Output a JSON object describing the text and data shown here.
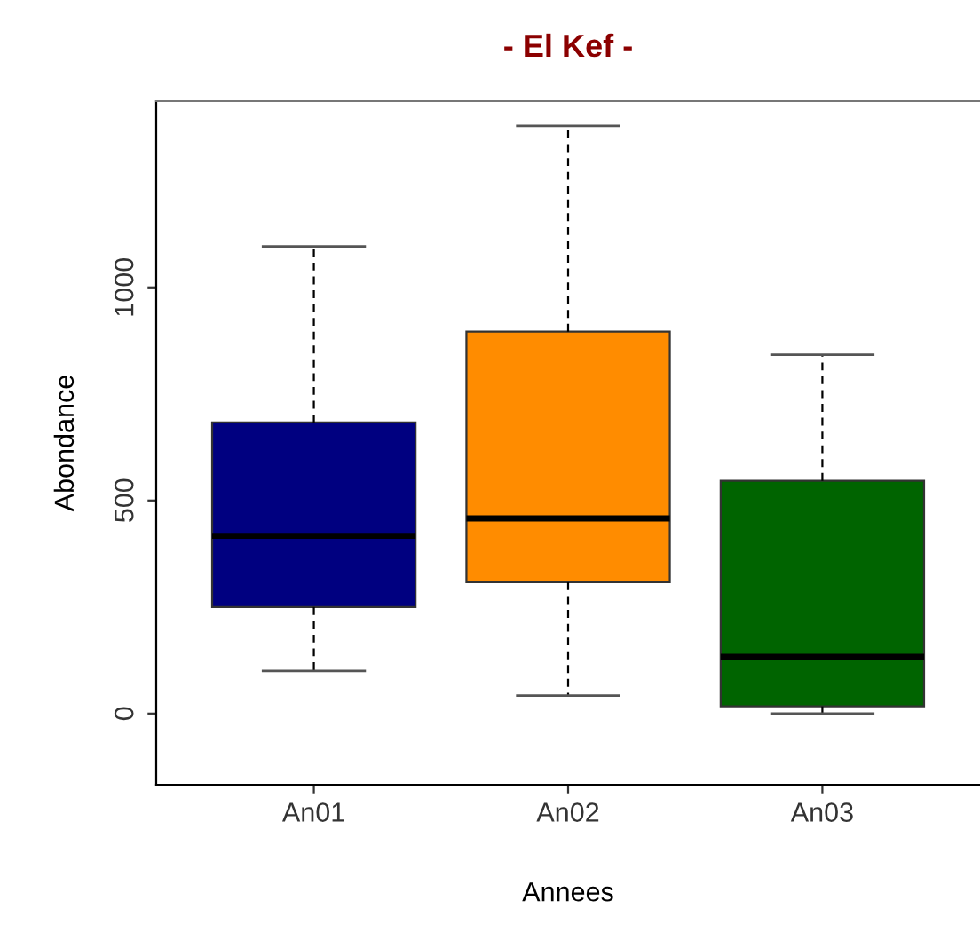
{
  "chart_data": {
    "type": "box",
    "title": "- El Kef -",
    "xlabel": "Annees",
    "ylabel": "Abondance",
    "categories": [
      "An01",
      "An02",
      "An03"
    ],
    "colors": [
      "#000080",
      "#ff8c00",
      "#006400"
    ],
    "boxes": [
      {
        "low": 100,
        "q1": 250,
        "median": 417,
        "q3": 683,
        "high": 1096
      },
      {
        "low": 42,
        "q1": 308,
        "median": 458,
        "q3": 896,
        "high": 1379
      },
      {
        "low": 0,
        "q1": 17,
        "median": 133,
        "q3": 546,
        "high": 842
      }
    ],
    "ylim": [
      -167,
      1437
    ],
    "yticks": [
      0,
      500,
      1000
    ],
    "grid": false,
    "legend": false
  }
}
